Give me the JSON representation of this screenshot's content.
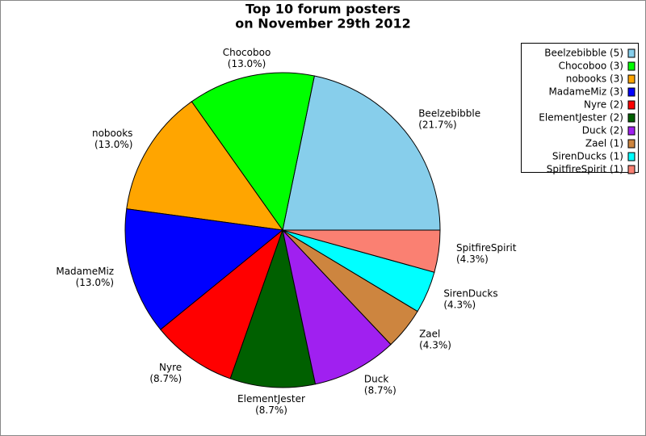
{
  "chart_data": {
    "type": "pie",
    "title": "Top 10 forum posters",
    "subtitle": "on November 29th 2012",
    "categories": [
      "Beelzebibble",
      "Chocoboo",
      "nobooks",
      "MadameMiz",
      "Nyre",
      "ElementJester",
      "Duck",
      "Zael",
      "SirenDucks",
      "SpitfireSpirit"
    ],
    "values": [
      21.7,
      13.0,
      13.0,
      13.0,
      8.7,
      8.7,
      8.7,
      4.3,
      4.3,
      4.3
    ],
    "value_labels": [
      "(21.7%)",
      "(13.0%)",
      "(13.0%)",
      "(13.0%)",
      "(8.7%)",
      "(8.7%)",
      "(8.7%)",
      "(4.3%)",
      "(4.3%)",
      "(4.3%)"
    ],
    "legend": [
      "Beelzebibble (5)",
      "Chocoboo (3)",
      "nobooks (3)",
      "MadameMiz (3)",
      "Nyre (2)",
      "ElementJester (2)",
      "Duck (2)",
      "Zael (1)",
      "SirenDucks (1)",
      "SpitfireSpirit (1)"
    ],
    "colors": [
      "#87ceeb",
      "#00ff00",
      "#ffa500",
      "#0000ff",
      "#ff0000",
      "#006000",
      "#a020f0",
      "#cd853f",
      "#00ffff",
      "#fa8072"
    ]
  }
}
